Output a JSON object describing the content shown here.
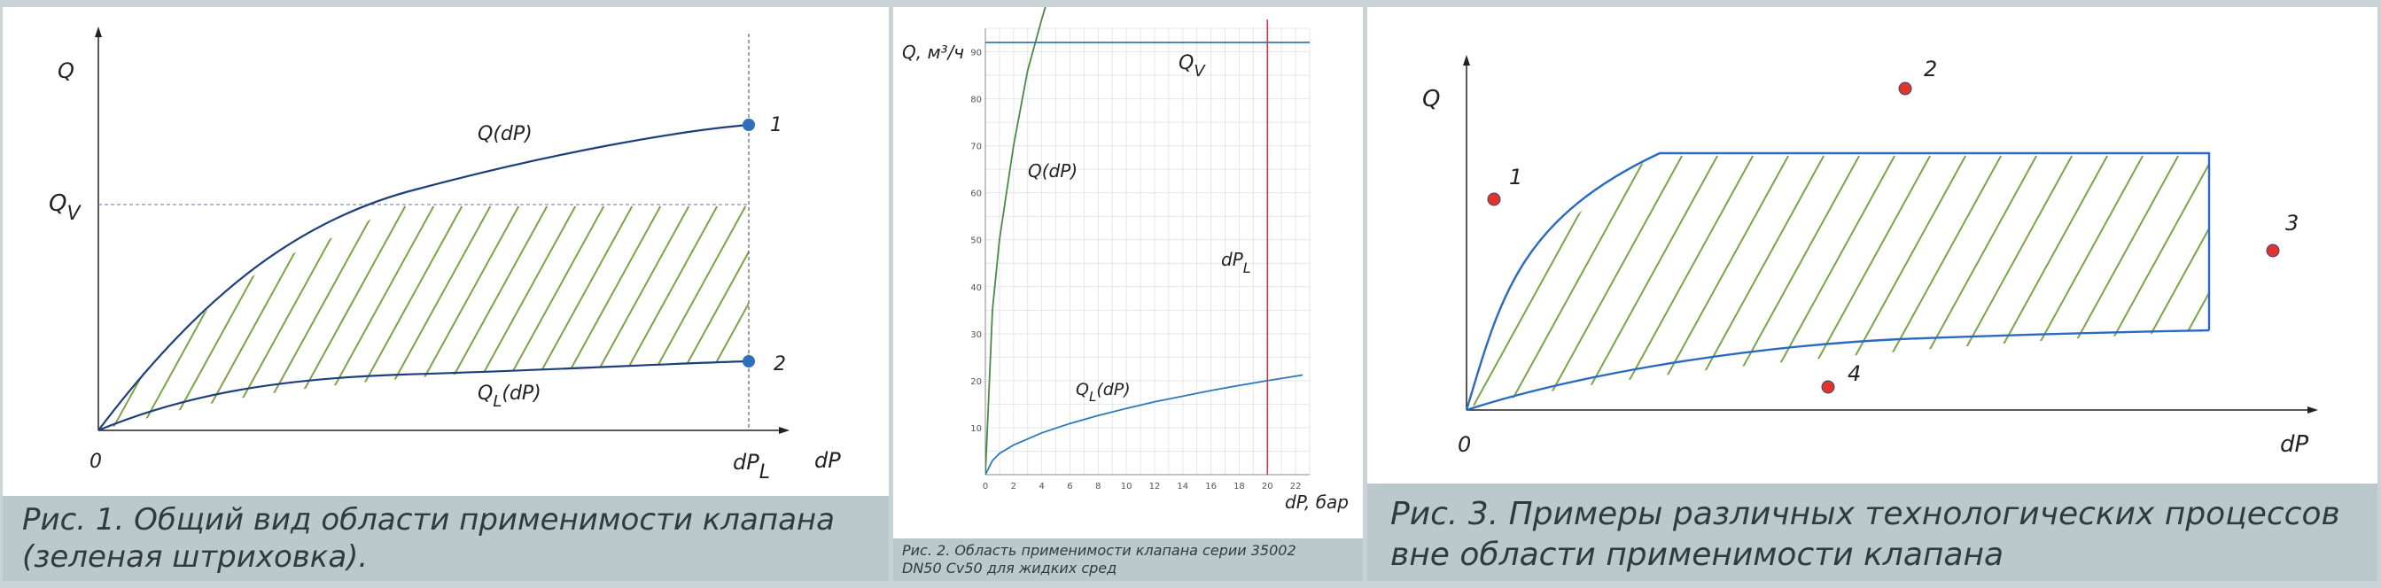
{
  "figure1": {
    "y_axis_label": "Q",
    "x_axis_label": "dP",
    "origin_label": "0",
    "qv_label_main": "Q",
    "qv_label_sub": "V",
    "dpl_label_main": "dP",
    "dpl_label_sub": "L",
    "upper_curve_label": "Q(dP)",
    "lower_curve_main": "Q",
    "lower_curve_sub": "L",
    "lower_curve_suffix": "(dP)",
    "point1_label": "1",
    "point2_label": "2",
    "caption_line1": "Рис. 1. Общий вид области применимости клапана",
    "caption_line2": "(зеленая штриховка)."
  },
  "figure2": {
    "y_axis_label": "Q, м³/ч",
    "x_axis_label": "dP, бар",
    "qv_label_main": "Q",
    "qv_label_sub": "V",
    "upper_curve_label": "Q(dP)",
    "lower_curve_main": "Q",
    "lower_curve_sub": "L",
    "lower_curve_suffix": "(dP)",
    "dpl_label_main": "dP",
    "dpl_label_sub": "L",
    "caption_line1": "Рис. 2. Область применимости клапана серии 35002",
    "caption_line2": "DN50 Cv50 для жидких сред"
  },
  "figure3": {
    "y_axis_label": "Q",
    "x_axis_label": "dP",
    "origin_label": "0",
    "point_labels": [
      "1",
      "2",
      "3",
      "4"
    ],
    "caption_line1": "Рис. 3. Примеры различных технологических процессов",
    "caption_line2": "вне области применимости клапана"
  },
  "chart_data": {
    "type": "line",
    "xlabel": "dP, бар",
    "ylabel": "Q, м³/ч",
    "xlim": [
      0,
      23
    ],
    "ylim": [
      0,
      95
    ],
    "x_ticks": [
      0,
      2,
      4,
      6,
      8,
      10,
      12,
      14,
      16,
      18,
      20,
      22
    ],
    "y_ticks": [
      10,
      20,
      30,
      40,
      50,
      60,
      70,
      80,
      90
    ],
    "grid": true,
    "series": [
      {
        "name": "Q(dP)",
        "x": [
          0,
          0.5,
          1,
          2,
          3,
          4,
          4.5
        ],
        "y": [
          0,
          35,
          50,
          70,
          86,
          97,
          102
        ]
      },
      {
        "name": "QL(dP)",
        "x": [
          0,
          0.5,
          1,
          2,
          4,
          6,
          8,
          10,
          12,
          14,
          16,
          18,
          20,
          22.5
        ],
        "y": [
          0,
          3,
          4.5,
          6.3,
          8.9,
          10.9,
          12.6,
          14.1,
          15.5,
          16.7,
          17.9,
          19,
          20,
          21.2
        ]
      },
      {
        "name": "QV",
        "x": [
          0,
          23
        ],
        "y": [
          92,
          92
        ]
      }
    ],
    "vertical_lines": [
      {
        "name": "dPL",
        "x": 20
      }
    ],
    "colors": {
      "q": "#4a8a45",
      "ql": "#2e78b8",
      "qv": "#2e78b8",
      "dpl": "#e0303a"
    }
  }
}
